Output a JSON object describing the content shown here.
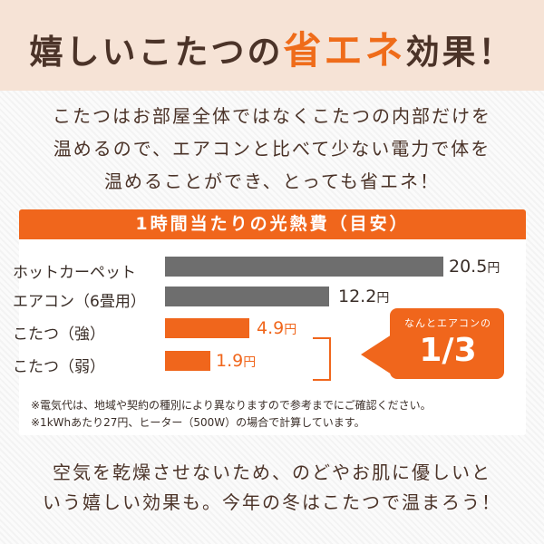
{
  "header": {
    "title_before": "嬉しいこたつの",
    "title_accent": "省エネ",
    "title_after": "効果！"
  },
  "intro": [
    "こたつはお部屋全体ではなくこたつの内部だけを",
    "温めるので、エアコンと比べて少ない電力で体を",
    "温めることができ、とっても省エネ！"
  ],
  "card": {
    "heading": "1時間当たりの光熱費（目安）",
    "unit": "円",
    "rows": [
      {
        "label": "ホットカーペット",
        "value": "20.5",
        "color": "gray"
      },
      {
        "label": "エアコン（6畳用）",
        "value": "12.2",
        "color": "gray"
      },
      {
        "label": "こたつ（強）",
        "value": "4.9",
        "color": "orange"
      },
      {
        "label": "こたつ（弱）",
        "value": "1.9",
        "color": "orange"
      }
    ],
    "callout_small": "なんとエアコンの",
    "callout_big": "1/3",
    "notes": [
      "※電気代は、地域や契約の種別により異なりますので参考までにご確認ください。",
      "※1kWhあたり27円、ヒーター（500W）の場合で計算しています。"
    ]
  },
  "outro": [
    "空気を乾燥させないため、のどやお肌に優しいと",
    "いう嬉しい効果も。今年の冬はこたつで温まろう！"
  ],
  "colors": {
    "accent": "#f0661c",
    "gray_bar": "#6e6e6e",
    "header_bg": "#f6e3d6",
    "text": "#4b3328"
  }
}
